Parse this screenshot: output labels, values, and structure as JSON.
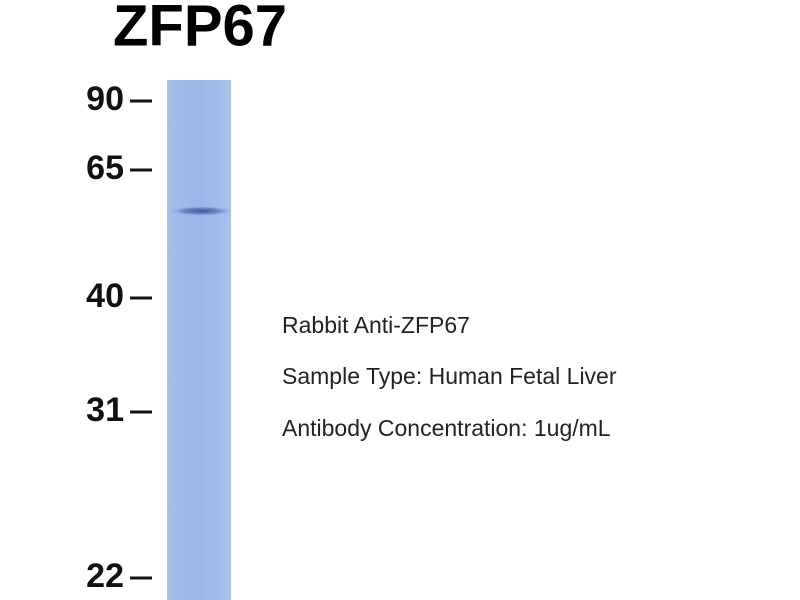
{
  "header": {
    "title": "ZFP67"
  },
  "markers": [
    90,
    65,
    40,
    31,
    22
  ],
  "description": [
    "Rabbit Anti-ZFP67",
    "Sample Type: Human Fetal Liver",
    "Antibody Concentration: 1ug/mL"
  ]
}
